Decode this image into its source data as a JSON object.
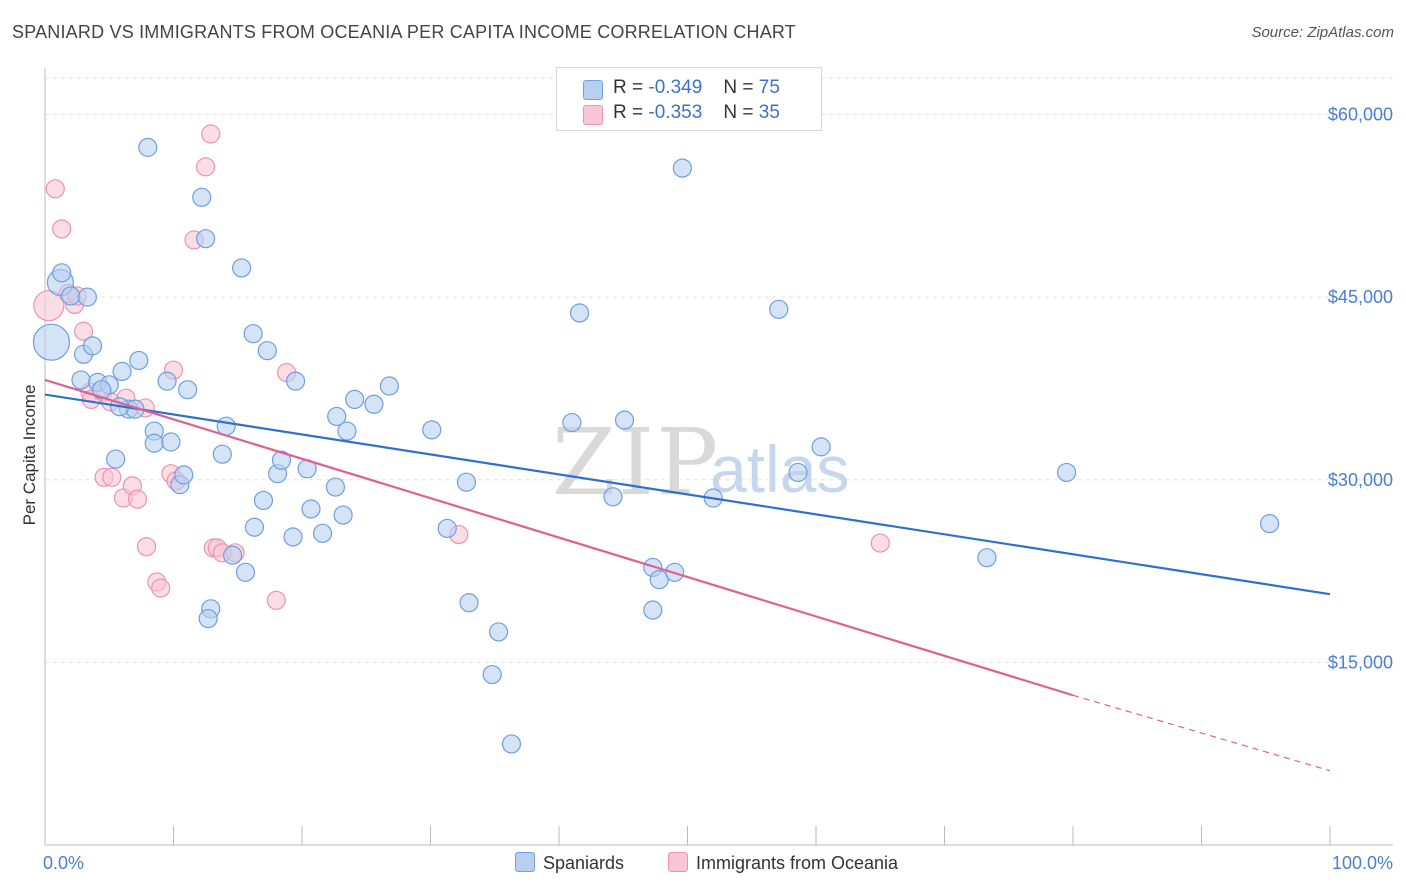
{
  "title": "SPANIARD VS IMMIGRANTS FROM OCEANIA PER CAPITA INCOME CORRELATION CHART",
  "source": "Source: ZipAtlas.com",
  "watermark_main": "ZIP",
  "watermark_sub": "atlas",
  "legend": {
    "row1": {
      "r_label": "R =",
      "r_value": "-0.349",
      "n_label": "N =",
      "n_value": "75"
    },
    "row2": {
      "r_label": "R =",
      "r_value": "-0.353",
      "n_label": "N =",
      "n_value": "35"
    }
  },
  "bottom_legend": {
    "series1": "Spaniards",
    "series2": "Immigrants from Oceania"
  },
  "colors": {
    "blue_fill": "#b8d0f0",
    "blue_stroke": "#6f9fe0",
    "blue_line": "#2f6fd0",
    "pink_fill": "#f8c6d6",
    "pink_stroke": "#ee92b0",
    "pink_line": "#e0618f",
    "grid": "#e3e3e3",
    "tick_text": "#4a7fd0"
  },
  "chart_data": {
    "type": "scatter",
    "title": "SPANIARD VS IMMIGRANTS FROM OCEANIA PER CAPITA INCOME CORRELATION CHART",
    "xlabel": "",
    "ylabel": "Per Capita Income",
    "xlim": [
      0,
      100
    ],
    "ylim": [
      0,
      63000
    ],
    "x_tick_labels": [
      "0.0%",
      "100.0%"
    ],
    "y_ticks": [
      15000,
      30000,
      45000,
      60000
    ],
    "y_tick_labels": [
      "$15,000",
      "$30,000",
      "$45,000",
      "$60,000"
    ],
    "grid": true,
    "legend_position": "top-center",
    "series": [
      {
        "name": "Spaniards",
        "r": -0.349,
        "n": 75,
        "trend": {
          "x": [
            0,
            100
          ],
          "y": [
            37000,
            20600
          ]
        },
        "points": [
          [
            0.5,
            41300,
            15
          ],
          [
            1.2,
            46200,
            10
          ],
          [
            1.3,
            47000,
            8
          ],
          [
            2.0,
            45100,
            8
          ],
          [
            3.0,
            40300,
            8
          ],
          [
            3.7,
            41000,
            8
          ],
          [
            2.8,
            38200,
            8
          ],
          [
            4.1,
            38000,
            8
          ],
          [
            5.0,
            37800,
            8
          ],
          [
            6.0,
            38900,
            8
          ],
          [
            7.3,
            39800,
            8
          ],
          [
            4.4,
            37400,
            8
          ],
          [
            6.5,
            35800,
            8
          ],
          [
            7.0,
            35800,
            8
          ],
          [
            5.5,
            31700,
            8
          ],
          [
            8.5,
            34000,
            8
          ],
          [
            8.5,
            33000,
            8
          ],
          [
            9.5,
            38100,
            8
          ],
          [
            9.8,
            33100,
            8
          ],
          [
            11.1,
            37400,
            8
          ],
          [
            10.5,
            29600,
            8
          ],
          [
            10.8,
            30400,
            8
          ],
          [
            14.1,
            34400,
            8
          ],
          [
            13.8,
            32100,
            8
          ],
          [
            16.2,
            42000,
            8
          ],
          [
            17.3,
            40600,
            8
          ],
          [
            15.3,
            47400,
            8
          ],
          [
            12.2,
            53200,
            8
          ],
          [
            12.5,
            49800,
            8
          ],
          [
            8.0,
            57300,
            8
          ],
          [
            19.5,
            38100,
            8
          ],
          [
            17.0,
            28300,
            8
          ],
          [
            16.3,
            26100,
            8
          ],
          [
            18.1,
            30500,
            8
          ],
          [
            18.4,
            31600,
            8
          ],
          [
            19.3,
            25300,
            8
          ],
          [
            20.4,
            30900,
            8
          ],
          [
            20.7,
            27600,
            8
          ],
          [
            21.6,
            25600,
            8
          ],
          [
            22.6,
            29400,
            8
          ],
          [
            22.7,
            35200,
            8
          ],
          [
            23.2,
            27100,
            8
          ],
          [
            23.5,
            34000,
            8
          ],
          [
            24.1,
            36600,
            8
          ],
          [
            25.6,
            36200,
            8
          ],
          [
            26.8,
            37700,
            8
          ],
          [
            15.6,
            22400,
            8
          ],
          [
            14.6,
            23800,
            8
          ],
          [
            12.9,
            19400,
            8
          ],
          [
            12.7,
            18600,
            8
          ],
          [
            30.1,
            34100,
            8
          ],
          [
            31.3,
            26000,
            8
          ],
          [
            32.8,
            29800,
            8
          ],
          [
            33.0,
            19900,
            8
          ],
          [
            35.3,
            17500,
            8
          ],
          [
            34.8,
            14000,
            8
          ],
          [
            36.3,
            8300,
            8
          ],
          [
            41.0,
            34700,
            8
          ],
          [
            41.6,
            43700,
            8
          ],
          [
            44.2,
            28600,
            8
          ],
          [
            45.1,
            34900,
            8
          ],
          [
            47.3,
            22800,
            8
          ],
          [
            47.3,
            19300,
            8
          ],
          [
            47.8,
            21800,
            8
          ],
          [
            49.0,
            22400,
            8
          ],
          [
            49.6,
            55600,
            8
          ],
          [
            52.0,
            28500,
            8
          ],
          [
            57.1,
            44000,
            8
          ],
          [
            58.6,
            30600,
            8
          ],
          [
            60.4,
            32700,
            8
          ],
          [
            73.3,
            23600,
            8
          ],
          [
            79.5,
            30600,
            8
          ],
          [
            95.3,
            26400,
            8
          ],
          [
            3.3,
            45000,
            8
          ],
          [
            5.8,
            36000,
            8
          ]
        ]
      },
      {
        "name": "Immigrants from Oceania",
        "r": -0.353,
        "n": 35,
        "trend": {
          "x": [
            0,
            80
          ],
          "y": [
            38200,
            12300
          ]
        },
        "trend_dashed": {
          "x": [
            80,
            100
          ],
          "y": [
            12300,
            6100
          ]
        },
        "points": [
          [
            0.3,
            44300,
            12
          ],
          [
            0.8,
            53900,
            8
          ],
          [
            1.3,
            50600,
            8
          ],
          [
            2.3,
            44400,
            8
          ],
          [
            1.8,
            45300,
            8
          ],
          [
            3.0,
            42200,
            8
          ],
          [
            3.5,
            37200,
            8
          ],
          [
            3.6,
            36600,
            8
          ],
          [
            4.5,
            37200,
            8
          ],
          [
            5.1,
            36400,
            8
          ],
          [
            6.3,
            36700,
            8
          ],
          [
            7.8,
            35900,
            8
          ],
          [
            4.6,
            30200,
            8
          ],
          [
            5.2,
            30200,
            8
          ],
          [
            6.1,
            28500,
            8
          ],
          [
            6.8,
            29500,
            8
          ],
          [
            7.2,
            28400,
            8
          ],
          [
            9.8,
            30500,
            8
          ],
          [
            10.2,
            29900,
            8
          ],
          [
            10.0,
            39000,
            8
          ],
          [
            8.7,
            21600,
            8
          ],
          [
            9.0,
            21100,
            8
          ],
          [
            7.9,
            24500,
            8
          ],
          [
            12.5,
            55700,
            8
          ],
          [
            12.9,
            58400,
            8
          ],
          [
            11.6,
            49700,
            8
          ],
          [
            13.1,
            24400,
            8
          ],
          [
            13.4,
            24400,
            8
          ],
          [
            13.8,
            24000,
            8
          ],
          [
            14.8,
            24000,
            8
          ],
          [
            18.0,
            20100,
            8
          ],
          [
            18.8,
            38800,
            8
          ],
          [
            32.2,
            25500,
            8
          ],
          [
            65.0,
            24800,
            8
          ],
          [
            2.5,
            45100,
            8
          ]
        ]
      }
    ]
  }
}
